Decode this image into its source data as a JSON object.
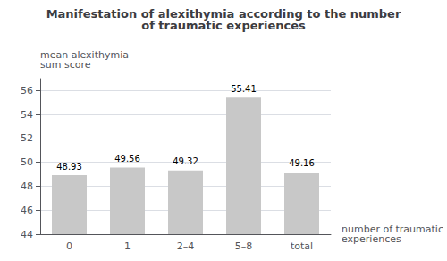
{
  "chart_data": {
    "type": "bar",
    "title": "Manifestation of alexithymia according to the number\nof traumatic experiences",
    "categories": [
      "0",
      "1",
      "2–4",
      "5–8",
      "total"
    ],
    "values": [
      48.93,
      49.56,
      49.32,
      55.41,
      49.16
    ],
    "color": "#c8c8c8",
    "ylabel": "mean alexithymia\nsum score",
    "xlabel": "number of traumatic\nexperiences",
    "ylim": [
      44,
      57
    ],
    "yticks": [
      44,
      46,
      48,
      50,
      52,
      54,
      56
    ],
    "grid": true,
    "data_labels": true
  }
}
